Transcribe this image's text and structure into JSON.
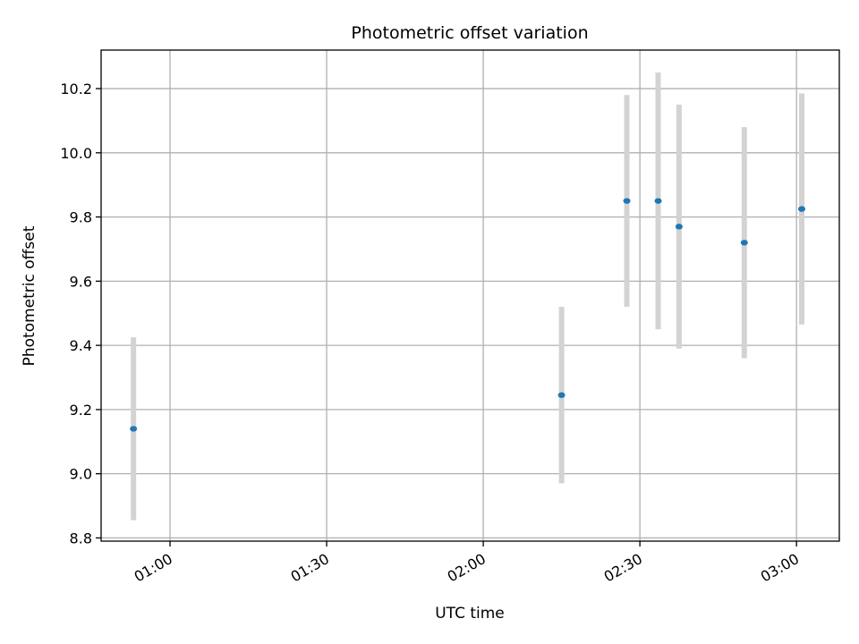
{
  "chart_data": {
    "type": "scatter",
    "title": "Photometric offset variation",
    "xlabel": "UTC time",
    "ylabel": "Photometric offset",
    "xlim": [
      "00:46:48",
      "03:08:12"
    ],
    "ylim": [
      8.79,
      10.32
    ],
    "x_ticks": [
      "01:00",
      "01:30",
      "02:00",
      "02:30",
      "03:00"
    ],
    "y_ticks": [
      "8.8",
      "9.0",
      "9.2",
      "9.4",
      "9.6",
      "9.8",
      "10.0",
      "10.2"
    ],
    "grid": true,
    "series": [
      {
        "marker_color": "#1f77b4",
        "errorbar_color": "#d3d3d3",
        "points": [
          {
            "x": "00:53:00",
            "y": 9.14,
            "err": 0.285
          },
          {
            "x": "02:15:00",
            "y": 9.245,
            "err": 0.275
          },
          {
            "x": "02:27:30",
            "y": 9.85,
            "err": 0.33
          },
          {
            "x": "02:33:30",
            "y": 9.85,
            "err": 0.4
          },
          {
            "x": "02:37:30",
            "y": 9.77,
            "err": 0.38
          },
          {
            "x": "02:50:00",
            "y": 9.72,
            "err": 0.36
          },
          {
            "x": "03:01:00",
            "y": 9.825,
            "err": 0.36
          }
        ]
      }
    ]
  }
}
